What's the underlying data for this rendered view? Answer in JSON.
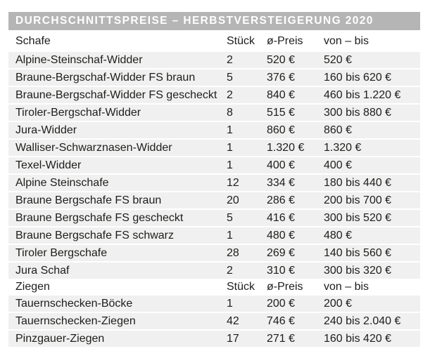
{
  "title": "DURCHSCHNITTSPREISE – HERBSTVERSTEIGERUNG 2020",
  "colors": {
    "title_bar_bg": "#b5b5b5",
    "title_text": "#ffffff",
    "row_bg": "#f0f0f0",
    "text": "#1d1d1b"
  },
  "sections": [
    {
      "label": "Schafe",
      "headers": [
        "Stück",
        "ø-Preis",
        "von – bis"
      ],
      "rows": [
        {
          "name": "Alpine-Steinschaf-Widder",
          "count": "2",
          "avg": "520 €",
          "range": "520 €"
        },
        {
          "name": "Braune-Bergschaf-Widder FS braun",
          "count": "5",
          "avg": "376 €",
          "range": "160 bis 620 €"
        },
        {
          "name": "Braune-Bergschaf-Widder FS gescheckt",
          "count": "2",
          "avg": "840 €",
          "range": "460 bis 1.220 €"
        },
        {
          "name": "Tiroler-Bergschaf-Widder",
          "count": "8",
          "avg": "515 €",
          "range": "300 bis 880 €"
        },
        {
          "name": "Jura-Widder",
          "count": "1",
          "avg": "860 €",
          "range": "860 €"
        },
        {
          "name": "Walliser-Schwarznasen-Widder",
          "count": "1",
          "avg": "1.320 €",
          "range": "1.320 €"
        },
        {
          "name": "Texel-Widder",
          "count": "1",
          "avg": "400 €",
          "range": "400 €"
        },
        {
          "name": "Alpine Steinschafe",
          "count": "12",
          "avg": "334 €",
          "range": "180 bis 440 €"
        },
        {
          "name": "Braune Bergschafe FS braun",
          "count": "20",
          "avg": "286 €",
          "range": "200 bis 700 €"
        },
        {
          "name": "Braune Bergschafe FS gescheckt",
          "count": "5",
          "avg": "416 €",
          "range": "300 bis 520 €"
        },
        {
          "name": "Braune Bergschafe FS schwarz",
          "count": "1",
          "avg": "480 €",
          "range": "480 €"
        },
        {
          "name": "Tiroler Bergschafe",
          "count": "28",
          "avg": "269 €",
          "range": "140 bis 560 €"
        },
        {
          "name": "Jura Schaf",
          "count": "2",
          "avg": "310 €",
          "range": "300  bis 320 €"
        }
      ]
    },
    {
      "label": "Ziegen",
      "headers": [
        "Stück",
        "ø-Preis",
        "von – bis"
      ],
      "rows": [
        {
          "name": "Tauernschecken-Böcke",
          "count": "1",
          "avg": "200 €",
          "range": "200 €"
        },
        {
          "name": "Tauernschecken-Ziegen",
          "count": "42",
          "avg": "746 €",
          "range": "240 bis 2.040 €"
        },
        {
          "name": "Pinzgauer-Ziegen",
          "count": "17",
          "avg": "271 €",
          "range": "160 bis 420 €"
        }
      ]
    }
  ]
}
